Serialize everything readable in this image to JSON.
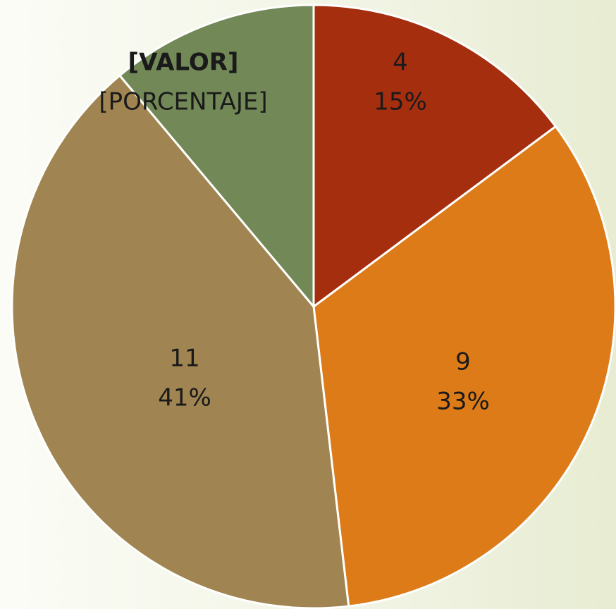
{
  "chart_data": {
    "type": "pie",
    "values": [
      4,
      9,
      11,
      3
    ],
    "value_labels": [
      "4",
      "9",
      "11",
      "[VALOR]"
    ],
    "percent_labels": [
      "15%",
      "33%",
      "41%",
      "[PORCENTAJE]"
    ],
    "colors": [
      "#a52e0f",
      "#dd7b18",
      "#a08552",
      "#728957"
    ]
  }
}
